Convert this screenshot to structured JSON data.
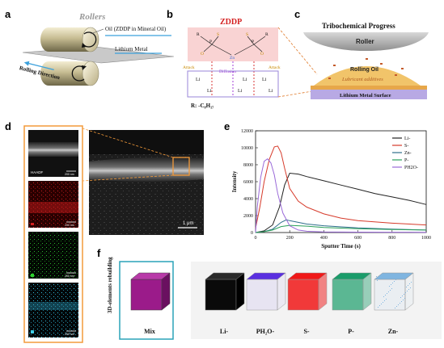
{
  "panels": {
    "a": {
      "letter": "a",
      "title": "Rollers",
      "oil_label": "Oil (ZDDP in Mineral Oil)",
      "metal_label": "Lithium Metal",
      "direction_label": "Rolling Direction"
    },
    "b": {
      "letter": "b",
      "title": "ZDDP",
      "attack_left": "Attack",
      "attack_right": "Attack",
      "diffusion": "Diffusion",
      "r_group": "R: -C₈H₁₇",
      "atoms": {
        "zn": "Zn",
        "p": "P",
        "s": "S",
        "r": "R",
        "o": "O",
        "li": "Li"
      }
    },
    "c": {
      "letter": "c",
      "title": "Tribochemical Progress",
      "roller": "Roller",
      "rolling_oil": "Rolling Oil",
      "additives": "Lubricant additives",
      "surface": "Lithium Metal Surface"
    },
    "d": {
      "letter": "d",
      "haadf": "HAADF",
      "scalebars": [
        "200 nm",
        "200 nm",
        "200 nm",
        "200 nm"
      ],
      "main_scalebar": "1 μm",
      "channel_colors": [
        "#d42020",
        "#2ecf2e",
        "#3fd0e8"
      ]
    },
    "e": {
      "letter": "e",
      "xlabel": "Sputter Time (s)",
      "ylabel": "Intensity"
    },
    "f": {
      "letter": "f",
      "side_label": "3D-elements rebuilding",
      "cubes": [
        {
          "label": "Mix",
          "color": "#9b1b8a"
        },
        {
          "label": "Li-",
          "color": "#0a0a0a"
        },
        {
          "label": "PH₂O-",
          "color": "#5a2fe0"
        },
        {
          "label": "S-",
          "color": "#f01818"
        },
        {
          "label": "P-",
          "color": "#1a9c6a"
        },
        {
          "label": "Zn-",
          "color": "#7fb5e0"
        }
      ]
    }
  },
  "chart_data": {
    "type": "line",
    "xlabel": "Sputter Time (s)",
    "ylabel": "Intensity",
    "xlim": [
      0,
      1000
    ],
    "ylim": [
      0,
      12000
    ],
    "xticks": [
      0,
      200,
      400,
      600,
      800,
      1000
    ],
    "yticks": [
      0,
      2000,
      4000,
      6000,
      8000,
      10000,
      12000
    ],
    "legend_position": "top-right",
    "series": [
      {
        "name": "Li-",
        "color": "#222222",
        "x": [
          0,
          50,
          100,
          140,
          170,
          200,
          250,
          300,
          400,
          500,
          600,
          700,
          800,
          900,
          1000
        ],
        "y": [
          0,
          200,
          900,
          3000,
          5600,
          7000,
          6900,
          6600,
          6100,
          5600,
          5100,
          4600,
          4200,
          3800,
          3300
        ]
      },
      {
        "name": "S-",
        "color": "#d63a2a",
        "x": [
          0,
          25,
          50,
          80,
          110,
          130,
          150,
          170,
          200,
          250,
          300,
          400,
          500,
          600,
          800,
          1000
        ],
        "y": [
          500,
          3000,
          6000,
          8600,
          10100,
          10200,
          9400,
          7600,
          5200,
          3700,
          3000,
          2200,
          1700,
          1400,
          1100,
          900
        ]
      },
      {
        "name": "Zn-",
        "color": "#2f6e8c",
        "x": [
          0,
          50,
          100,
          150,
          180,
          200,
          300,
          400,
          600,
          800,
          1000
        ],
        "y": [
          0,
          100,
          400,
          1200,
          1500,
          1400,
          1000,
          800,
          550,
          400,
          300
        ]
      },
      {
        "name": "P-",
        "color": "#2aa05a",
        "x": [
          0,
          50,
          100,
          150,
          200,
          300,
          400,
          600,
          800,
          1000
        ],
        "y": [
          0,
          100,
          300,
          700,
          850,
          750,
          600,
          450,
          350,
          300
        ]
      },
      {
        "name": "PH2O-",
        "color": "#9a6ad8",
        "x": [
          0,
          10,
          30,
          50,
          70,
          90,
          110,
          130,
          160,
          200,
          250,
          300,
          400,
          600,
          800,
          1000
        ],
        "y": [
          0,
          3000,
          6500,
          8400,
          8700,
          8200,
          6800,
          4600,
          2300,
          800,
          300,
          150,
          80,
          50,
          40,
          30
        ]
      }
    ]
  }
}
